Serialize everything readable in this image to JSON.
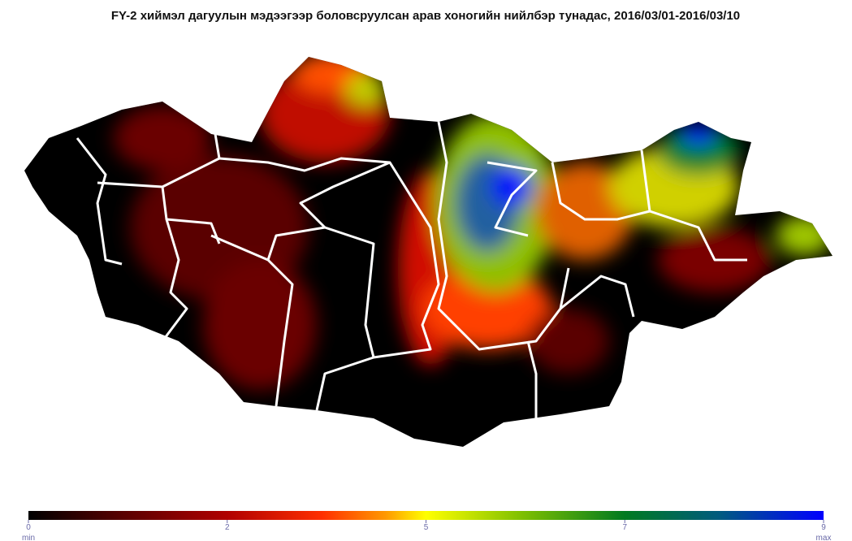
{
  "title": "FY-2 хиймэл дагуулын мэдээгээр боловсруулсан арав хоногийн нийлбэр тунадас, 2016/03/01-2016/03/10",
  "colorbar": {
    "ticks": [
      0,
      2,
      5,
      7,
      9
    ],
    "min_label": "min",
    "max_label": "max"
  }
}
